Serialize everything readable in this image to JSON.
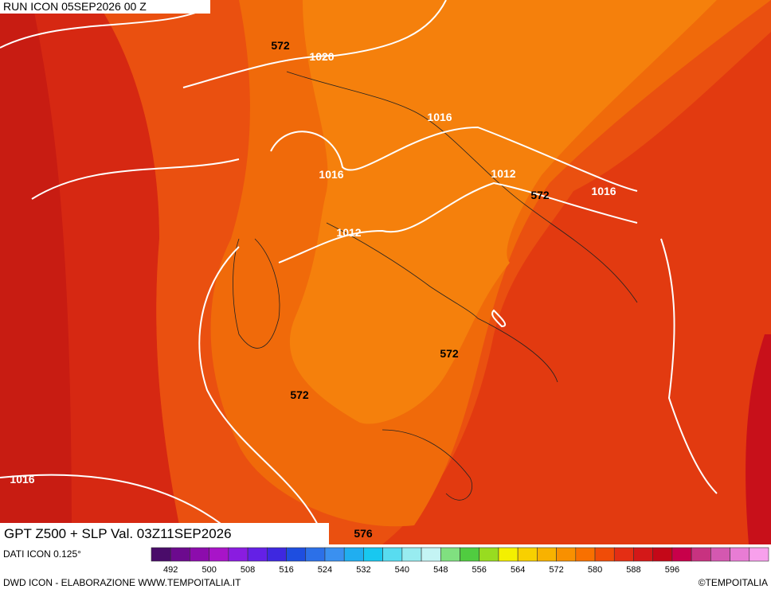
{
  "header": {
    "run": "RUN ICON 05SEP2026 00 Z",
    "title": "GPT Z500 + SLP Val. 03Z11SEP2026"
  },
  "contour_labels": [
    "572",
    "1020",
    "1016",
    "1016",
    "1012",
    "572",
    "1016",
    "1012",
    "572",
    "572",
    "1016",
    "576"
  ],
  "colorbar": {
    "labels": [
      492,
      500,
      508,
      516,
      524,
      532,
      540,
      548,
      556,
      564,
      572,
      580,
      588,
      596
    ],
    "colors": [
      "#4a0c6a",
      "#6c0a8e",
      "#8c0cac",
      "#a814c8",
      "#8a1ce0",
      "#6420e6",
      "#3e28e0",
      "#1e4ee0",
      "#2c70e8",
      "#3a90f0",
      "#20aef0",
      "#18c8f0",
      "#58dcf0",
      "#98ecf0",
      "#c4f4f4",
      "#80e080",
      "#50cc40",
      "#98dc20",
      "#f4f000",
      "#f8d000",
      "#f8b200",
      "#f89000",
      "#f87000",
      "#f04c08",
      "#e42e14",
      "#d41818",
      "#c40818",
      "#c8004a",
      "#c83280",
      "#d458b0",
      "#e87cd4",
      "#f8a0ec"
    ]
  },
  "footer": {
    "data_source": "DATI ICON 0.125°",
    "credit": "DWD ICON - ELABORAZIONE WWW.TEMPOITALIA.IT",
    "copyright": "©TEMPOITALIA"
  }
}
